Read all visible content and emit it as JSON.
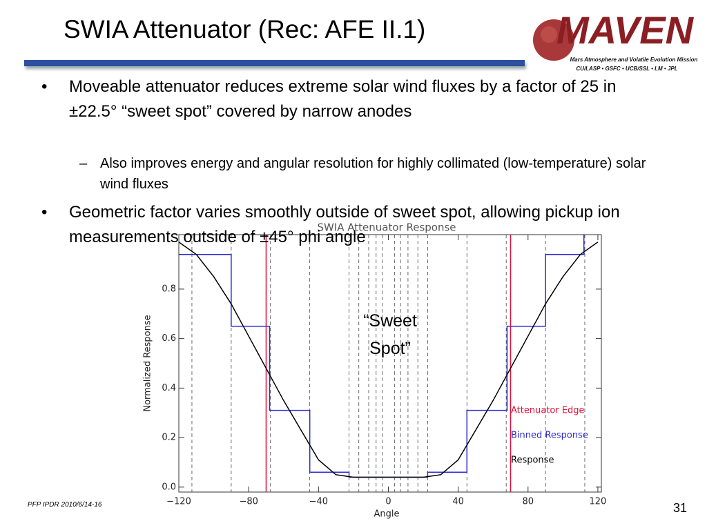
{
  "slide": {
    "title": "SWIA Attenuator (Rec: AFE II.1)",
    "logo": {
      "name": "MAVEN",
      "subtitle": "Mars Atmosphere and Volatile Evolution Mission",
      "partners": "CU/LASP • GSFC • UCB/SSL • LM • JPL"
    },
    "bullets": [
      {
        "text": "Moveable attenuator reduces extreme solar wind fluxes by a factor of 25 in ±22.5°  “sweet spot” covered by narrow anodes",
        "sub": [
          "Also improves energy and angular resolution for highly collimated (low-temperature) solar wind fluxes"
        ]
      },
      {
        "text": "Geometric factor varies smoothly outside of sweet spot, allowing pickup ion measurements outside of ±45°  phi angle"
      }
    ],
    "footer": "PFP IPDR 2010/6/14-16",
    "page_number": "31"
  },
  "chart_data": {
    "type": "line",
    "title": "SWIA Attenuator Response",
    "x_label": "Angle",
    "y_label": "Normalized Response",
    "annotation": "“Sweet Spot”",
    "xlim": [
      -120,
      122
    ],
    "ylim": [
      -0.02,
      1.02
    ],
    "xticks": [
      {
        "value": -120,
        "label": "−120"
      },
      {
        "value": -80,
        "label": "−80"
      },
      {
        "value": -40,
        "label": "−40"
      },
      0,
      40,
      80,
      120
    ],
    "yticks": [
      {
        "value": 0,
        "label": "0.0"
      },
      0.2,
      0.4,
      0.6,
      0.8
    ],
    "bin_lines": [
      -112.5,
      -90,
      -67.5,
      -45,
      -22.5,
      -16.9,
      -11.25,
      -7,
      -3.5,
      3.5,
      7,
      11.25,
      16.9,
      22.5,
      45,
      67.5,
      90,
      112.5
    ],
    "series": [
      {
        "name": "Attenuator Edge",
        "color": "#e0103a",
        "x": [
          -70,
          70
        ]
      },
      {
        "name": "Binned Response",
        "color": "#2b2bd0",
        "x": [
          -120,
          -90,
          -90,
          -68,
          -68,
          -45,
          -45,
          -22.5,
          -22.5,
          22.5,
          22.5,
          45,
          45,
          68,
          68,
          90,
          90,
          112,
          112
        ],
        "values": [
          0.94,
          0.94,
          0.65,
          0.65,
          0.31,
          0.31,
          0.06,
          0.06,
          0.04,
          0.04,
          0.06,
          0.06,
          0.31,
          0.31,
          0.65,
          0.65,
          0.94,
          0.94,
          1.02
        ]
      },
      {
        "name": "Response",
        "color": "#000000",
        "x": [
          -120,
          -110,
          -100,
          -90,
          -80,
          -70,
          -60,
          -50,
          -40,
          -30,
          -20,
          0,
          20,
          30,
          40,
          50,
          60,
          70,
          80,
          90,
          100,
          110,
          120
        ],
        "values": [
          0.99,
          0.94,
          0.85,
          0.74,
          0.61,
          0.48,
          0.35,
          0.23,
          0.11,
          0.05,
          0.04,
          0.04,
          0.04,
          0.05,
          0.11,
          0.23,
          0.35,
          0.48,
          0.61,
          0.74,
          0.85,
          0.94,
          0.99
        ]
      }
    ]
  }
}
